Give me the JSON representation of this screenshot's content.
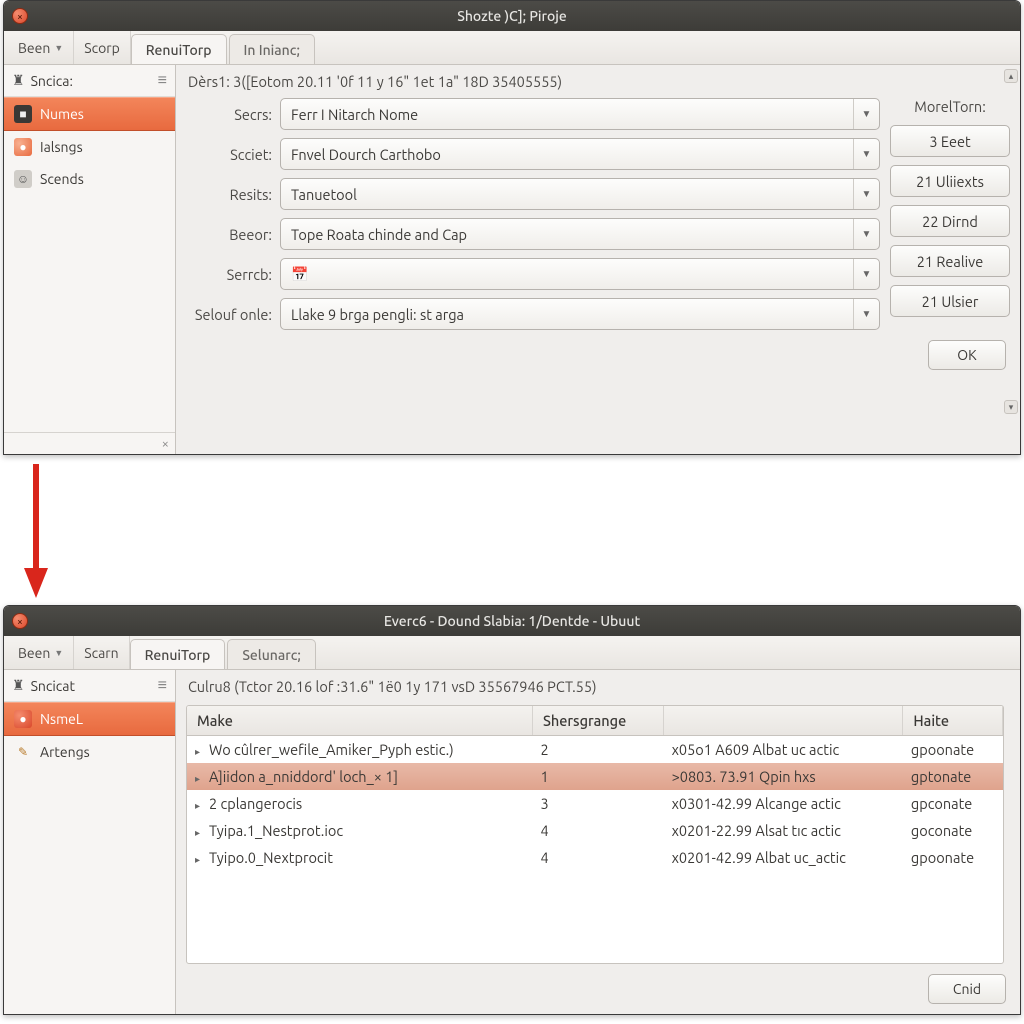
{
  "colors": {
    "accent": "#e86a3f",
    "titlebar_bg_top": "#4c4b47",
    "titlebar_bg_bottom": "#3d3c38",
    "window_bg": "#f0eeec",
    "border": "#c7c3be",
    "text": "#3a3835",
    "row_selected_top": "#e8b9a8",
    "row_selected_bottom": "#dfa38d",
    "arrow": "#d9261c"
  },
  "win1": {
    "title": "Shozte  )C]; Piroje",
    "toolbar": {
      "btn1": "Been",
      "btn2": "Scorp",
      "tab_active": "RenuiTorp",
      "tab_inactive": "In Inianc;"
    },
    "sidebar": {
      "header": "Sncica:",
      "items": [
        {
          "label": "Numes",
          "active": true,
          "icon": "dark"
        },
        {
          "label": "Ialsngs",
          "active": false,
          "icon": "orange"
        },
        {
          "label": "Scends",
          "active": false,
          "icon": "grey"
        }
      ],
      "close_glyph": "×"
    },
    "status": "Dèrs1: 3([Eotom 20.11 '0f 11 y 16\" 1et 1a\" 18D 35405555)",
    "form": {
      "rows": [
        {
          "label": "Secrs:",
          "value": "Ferr I Nitarch Nome"
        },
        {
          "label": "Scciet:",
          "value": "Fnvel Dourch Carthobo"
        },
        {
          "label": "Resits:",
          "value": "Tanuetool"
        },
        {
          "label": "Beeor:",
          "value": "Tope Roata chinde and Cap"
        },
        {
          "label": "Serrcb:",
          "value": "",
          "icon": "calendar"
        },
        {
          "label": "Selouf onle:",
          "value": "Llake 9 brga pengli: st arga"
        }
      ],
      "side_header": "MorelTorn:",
      "side_buttons": [
        "3 Eeet",
        "21 Uliiexts",
        "22 Dirnd",
        "21 Realive",
        "21 Ulsier"
      ]
    },
    "ok": "OK"
  },
  "win2": {
    "title": "Everc6 - Dound Slabia: 1/Dentde - Ubuut",
    "toolbar": {
      "btn1": "Been",
      "btn2": "Scarn",
      "tab_active": "RenuiTorp",
      "tab_inactive": "Selunarc;"
    },
    "sidebar": {
      "header": "Sncicat",
      "items": [
        {
          "label": "NsmeL",
          "active": true,
          "icon": "red"
        },
        {
          "label": "Artengs",
          "active": false,
          "icon": "pencil"
        }
      ]
    },
    "status": "Culru8 (Tctor 20.16 lof :31.6\" 1ë0 1y 171 vsD  35567946 PCT.55)",
    "table": {
      "columns": [
        "Make",
        "Shersgrange",
        "",
        "Haite"
      ],
      "rows": [
        {
          "c0": "Wo cûlrer_wefile_Amiker_Pyph estic.)",
          "c1": "2",
          "c2": "x05o1  A609 Albat uc actic",
          "c3": "gpoonate",
          "sel": false
        },
        {
          "c0": "A]iidon a_nniddord' loch_× 1]",
          "c1": "1",
          "c2": ">0803.  73.91 Qpin hxs",
          "c3": "gptonate",
          "sel": true
        },
        {
          "c0": "2 cplangerocis",
          "c1": "3",
          "c2": "x0301-42.99 Alcange actic",
          "c3": "gpconate",
          "sel": false
        },
        {
          "c0": "Tyipa.1_Nestprot.ioc",
          "c1": "4",
          "c2": "x0201-22.99 Alsat tıc actic",
          "c3": "goconate",
          "sel": false
        },
        {
          "c0": "Tyipo.0_Nextprocit",
          "c1": "4",
          "c2": "x0201-42.99 Albat uc_actic",
          "c3": "gpoonate",
          "sel": false
        }
      ]
    },
    "ok": "Cnid"
  }
}
